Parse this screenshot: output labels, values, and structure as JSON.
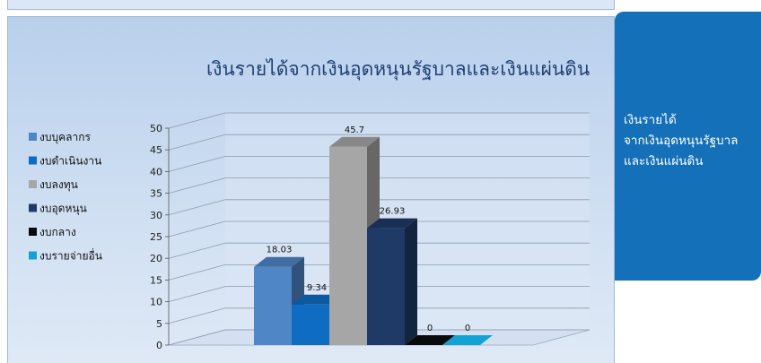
{
  "side_panel": {
    "lines": [
      "เงินรายได้",
      "จากเงินอุดหนุนรัฐบาล",
      "และเงินแผ่นดิน"
    ]
  },
  "chart_data": {
    "type": "bar",
    "title": "เงินรายได้จากเงินอุดหนุนรัฐบาลและเงินแผ่นดิน",
    "categories": [
      ""
    ],
    "series": [
      {
        "name": "งบบุคลากร",
        "values": [
          18.03
        ],
        "color": "#4f86c6"
      },
      {
        "name": "งบดำเนินงาน",
        "values": [
          9.34
        ],
        "color": "#0f6cc3"
      },
      {
        "name": "งบลงทุน",
        "values": [
          45.7
        ],
        "color": "#a6a6a6"
      },
      {
        "name": "งบอุดหนุน",
        "values": [
          26.93
        ],
        "color": "#1f3a66"
      },
      {
        "name": "งบกลาง",
        "values": [
          0
        ],
        "color": "#0a0a0a"
      },
      {
        "name": "งบรายจ่ายอื่น",
        "values": [
          0
        ],
        "color": "#11a3d6"
      }
    ],
    "data_labels": [
      "18.03",
      "9.34",
      "45.7",
      "26.93",
      "0",
      "0"
    ],
    "y_ticks": [
      "0",
      "5",
      "10",
      "15",
      "20",
      "25",
      "30",
      "35",
      "40",
      "45",
      "50"
    ],
    "ylim": [
      0,
      50
    ],
    "grid": true,
    "legend_position": "left",
    "style": "3d-clustered-column"
  }
}
